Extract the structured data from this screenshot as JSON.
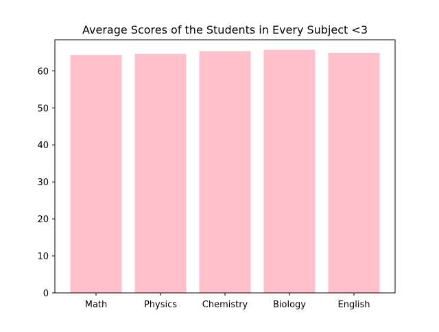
{
  "chart_data": {
    "type": "bar",
    "title": "Average Scores of the Students in Every Subject <3",
    "xlabel": "",
    "ylabel": "",
    "categories": [
      "Math",
      "Physics",
      "Chemistry",
      "Biology",
      "English"
    ],
    "values": [
      64.3,
      64.6,
      65.3,
      65.7,
      64.9
    ],
    "ylim": [
      0,
      68.4
    ],
    "yticks": [
      0,
      10,
      20,
      30,
      40,
      50,
      60
    ],
    "grid": false,
    "bar_color": "#ffc0cb",
    "axis_color": "#000000"
  }
}
